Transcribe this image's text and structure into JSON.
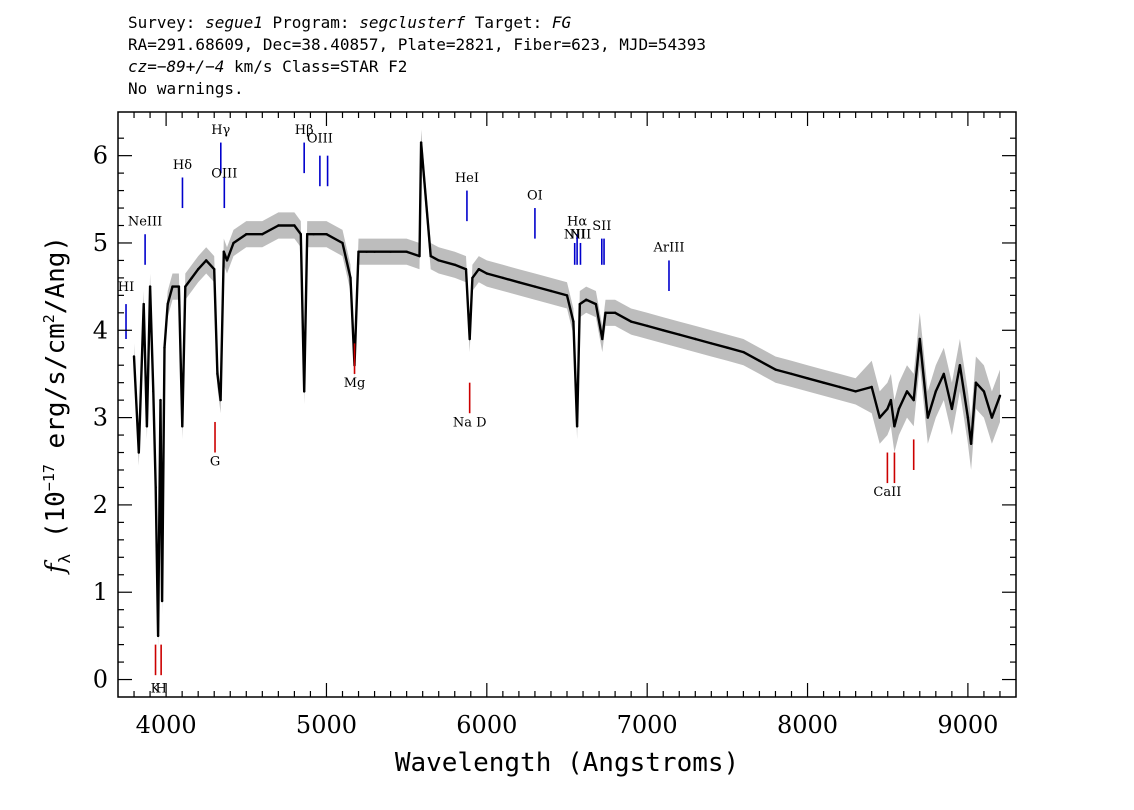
{
  "header": {
    "line1": {
      "survey_label": "Survey: ",
      "survey": "segue1",
      "program_label": " Program: ",
      "program": "segclusterf",
      "target_label": " Target: ",
      "target": "FG"
    },
    "line2": "RA=291.68609, Dec=38.40857, Plate=2821, Fiber=623, MJD=54393",
    "line3": {
      "cz_label": "cz",
      "cz_value": "=−89+/−4",
      "cz_unit": " km/s Class=STAR F2"
    },
    "line4": "No warnings."
  },
  "chart_data": {
    "type": "line",
    "title": "",
    "xlabel": "Wavelength (Angstroms)",
    "ylabel": "f_λ (10^-17 erg/s/cm^2/Ang)",
    "xlim": [
      3700,
      9300
    ],
    "ylim": [
      -0.2,
      6.5
    ],
    "x_ticks": [
      4000,
      5000,
      6000,
      7000,
      8000,
      9000
    ],
    "y_ticks": [
      0,
      1,
      2,
      3,
      4,
      5,
      6
    ],
    "colors": {
      "spectrum": "#000000",
      "error_band": "#bdbdbd",
      "emission_marker": "#0000cc",
      "absorption_marker": "#cc0000"
    },
    "series": [
      {
        "name": "spectrum",
        "x": [
          3800,
          3830,
          3860,
          3880,
          3900,
          3920,
          3935,
          3950,
          3965,
          3975,
          3990,
          4010,
          4040,
          4080,
          4101,
          4120,
          4160,
          4200,
          4250,
          4300,
          4320,
          4340,
          4360,
          4380,
          4420,
          4500,
          4600,
          4700,
          4800,
          4840,
          4861,
          4880,
          4920,
          5000,
          5100,
          5150,
          5175,
          5200,
          5250,
          5300,
          5400,
          5500,
          5580,
          5590,
          5650,
          5700,
          5800,
          5870,
          5893,
          5910,
          5950,
          6000,
          6100,
          6200,
          6300,
          6400,
          6500,
          6540,
          6563,
          6580,
          6620,
          6680,
          6720,
          6740,
          6800,
          6900,
          7000,
          7100,
          7200,
          7300,
          7400,
          7500,
          7600,
          7700,
          7800,
          7900,
          8000,
          8100,
          8200,
          8300,
          8400,
          8450,
          8498,
          8520,
          8542,
          8570,
          8620,
          8662,
          8700,
          8750,
          8800,
          8850,
          8900,
          8950,
          9000,
          9020,
          9050,
          9100,
          9150,
          9200
        ],
        "y": [
          3.7,
          2.6,
          4.3,
          2.9,
          4.5,
          3.3,
          2.2,
          0.5,
          3.2,
          0.9,
          3.8,
          4.3,
          4.5,
          4.5,
          2.9,
          4.5,
          4.6,
          4.7,
          4.8,
          4.7,
          3.5,
          3.2,
          4.9,
          4.8,
          5.0,
          5.1,
          5.1,
          5.2,
          5.2,
          5.1,
          3.3,
          5.1,
          5.1,
          5.1,
          5.0,
          4.6,
          3.6,
          4.9,
          4.9,
          4.9,
          4.9,
          4.9,
          4.85,
          6.15,
          4.85,
          4.8,
          4.75,
          4.7,
          3.9,
          4.6,
          4.7,
          4.65,
          4.6,
          4.55,
          4.5,
          4.45,
          4.4,
          4.1,
          2.9,
          4.3,
          4.35,
          4.3,
          3.9,
          4.2,
          4.2,
          4.1,
          4.05,
          4.0,
          3.95,
          3.9,
          3.85,
          3.8,
          3.75,
          3.65,
          3.55,
          3.5,
          3.45,
          3.4,
          3.35,
          3.3,
          3.35,
          3.0,
          3.1,
          3.2,
          2.9,
          3.1,
          3.3,
          3.2,
          3.9,
          3.0,
          3.3,
          3.5,
          3.1,
          3.6,
          3.0,
          2.7,
          3.4,
          3.3,
          3.0,
          3.25
        ]
      }
    ],
    "emission_lines": [
      {
        "label": "HI",
        "x": 3750,
        "y1": 4.3,
        "y2": 3.9,
        "label_y": 4.45
      },
      {
        "label": "NeIII",
        "x": 3869,
        "y1": 5.1,
        "y2": 4.75,
        "label_y": 5.2
      },
      {
        "label": "Hδ",
        "x": 4102,
        "y1": 5.75,
        "y2": 5.4,
        "label_y": 5.85
      },
      {
        "label": "Hγ",
        "x": 4341,
        "y1": 6.15,
        "y2": 5.8,
        "label_y": 6.25
      },
      {
        "label": "OIII",
        "x": 4363,
        "y1": 5.75,
        "y2": 5.4,
        "label_y": 5.75
      },
      {
        "label": "Hβ",
        "x": 4861,
        "y1": 6.15,
        "y2": 5.8,
        "label_y": 6.25
      },
      {
        "label": "OIII",
        "x": 4959,
        "y1": 6.0,
        "y2": 5.65,
        "label_y": 6.15
      },
      {
        "label": "",
        "x": 5007,
        "y1": 6.0,
        "y2": 5.65,
        "label_y": 6.15
      },
      {
        "label": "HeI",
        "x": 5876,
        "y1": 5.6,
        "y2": 5.25,
        "label_y": 5.7
      },
      {
        "label": "OI",
        "x": 6300,
        "y1": 5.4,
        "y2": 5.05,
        "label_y": 5.5
      },
      {
        "label": "NII",
        "x": 6548,
        "y1": 5.0,
        "y2": 4.75,
        "label_y": 5.05
      },
      {
        "label": "Hα",
        "x": 6563,
        "y1": 5.1,
        "y2": 4.75,
        "label_y": 5.2
      },
      {
        "label": "NII",
        "x": 6584,
        "y1": 5.0,
        "y2": 4.75,
        "label_y": 5.05
      },
      {
        "label": "SII",
        "x": 6717,
        "y1": 5.05,
        "y2": 4.75,
        "label_y": 5.15
      },
      {
        "label": "",
        "x": 6731,
        "y1": 5.05,
        "y2": 4.75,
        "label_y": 5.15
      },
      {
        "label": "ArIII",
        "x": 7136,
        "y1": 4.8,
        "y2": 4.45,
        "label_y": 4.9
      }
    ],
    "absorption_lines": [
      {
        "label": "K",
        "x": 3934,
        "y1": 0.4,
        "y2": 0.05,
        "label_y": -0.15
      },
      {
        "label": "H",
        "x": 3969,
        "y1": 0.4,
        "y2": 0.05,
        "label_y": -0.15
      },
      {
        "label": "G",
        "x": 4305,
        "y1": 2.95,
        "y2": 2.6,
        "label_y": 2.45
      },
      {
        "label": "Mg",
        "x": 5175,
        "y1": 3.85,
        "y2": 3.5,
        "label_y": 3.35
      },
      {
        "label": "Na D",
        "x": 5893,
        "y1": 3.4,
        "y2": 3.05,
        "label_y": 2.9
      },
      {
        "label": "CaII",
        "x": 8498,
        "y1": 2.6,
        "y2": 2.25,
        "label_y": 2.1
      },
      {
        "label": "",
        "x": 8542,
        "y1": 2.6,
        "y2": 2.25,
        "label_y": 2.1
      },
      {
        "label": "",
        "x": 8662,
        "y1": 2.75,
        "y2": 2.4,
        "label_y": 2.1
      }
    ]
  }
}
